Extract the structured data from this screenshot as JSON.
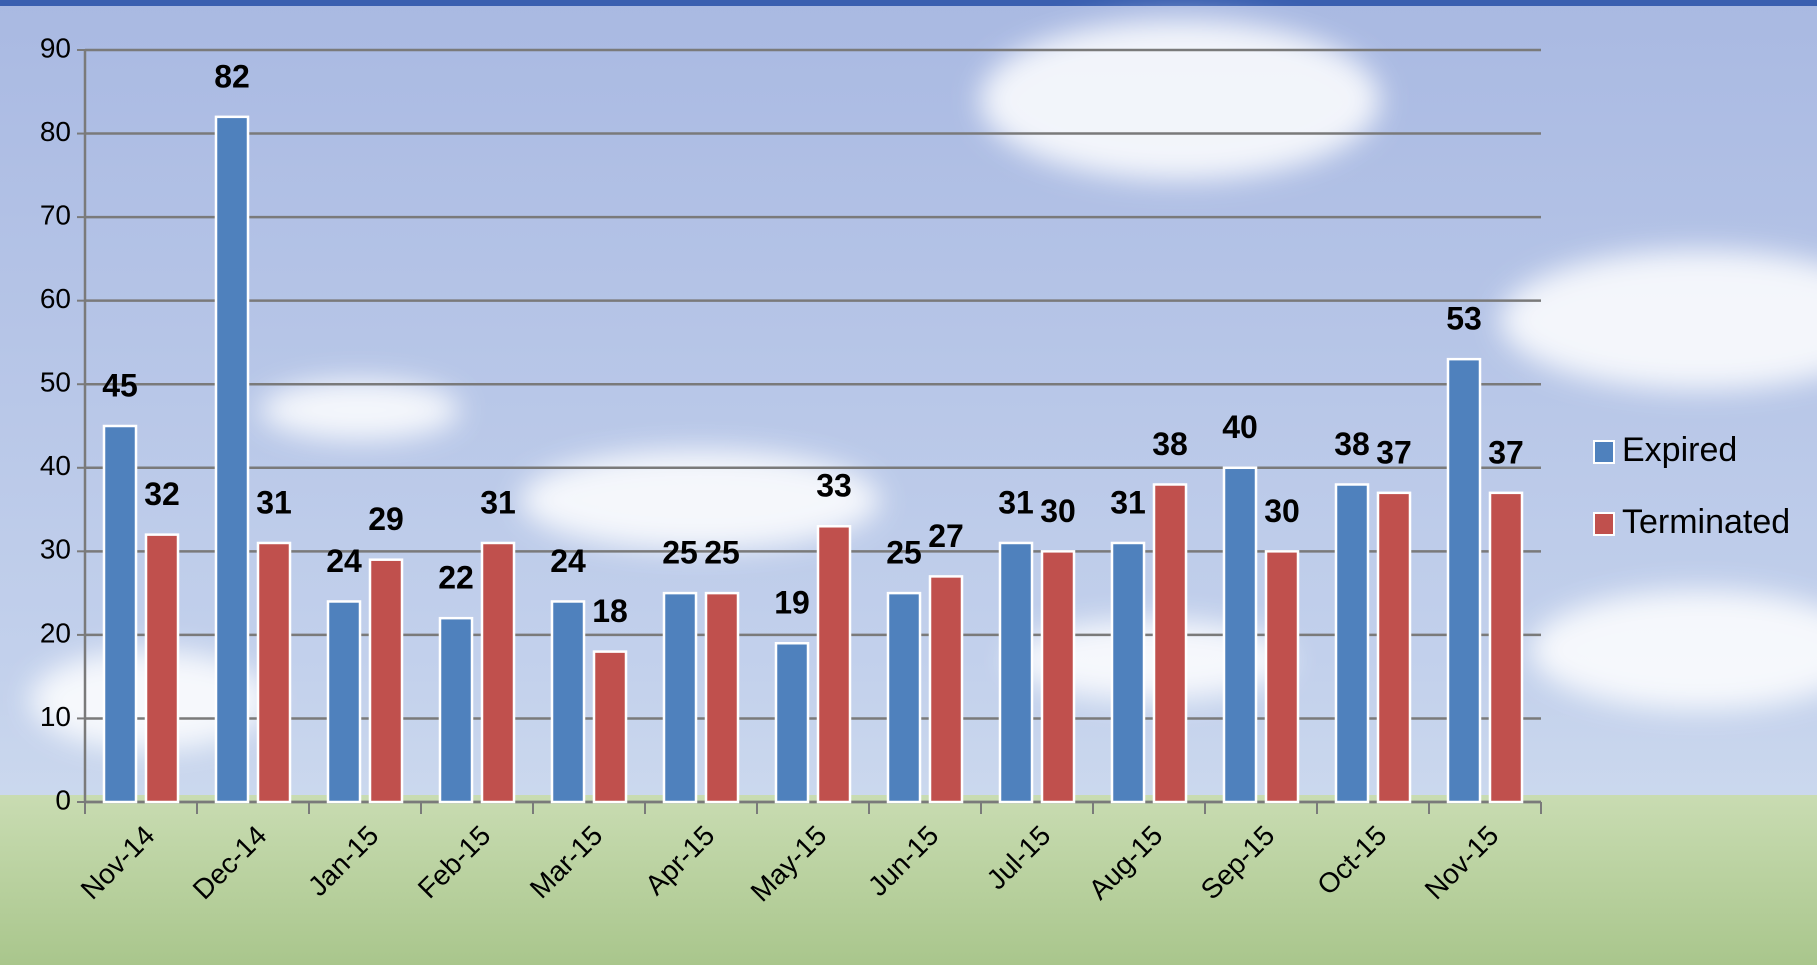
{
  "chart_data": {
    "type": "bar",
    "categories": [
      "Nov-14",
      "Dec-14",
      "Jan-15",
      "Feb-15",
      "Mar-15",
      "Apr-15",
      "May-15",
      "Jun-15",
      "Jul-15",
      "Aug-15",
      "Sep-15",
      "Oct-15",
      "Nov-15"
    ],
    "series": [
      {
        "name": "Expired",
        "color": "#4f81bd",
        "values": [
          45,
          82,
          24,
          22,
          24,
          25,
          19,
          25,
          31,
          31,
          40,
          38,
          53
        ]
      },
      {
        "name": "Terminated",
        "color": "#c0504d",
        "values": [
          32,
          31,
          29,
          31,
          18,
          25,
          33,
          27,
          30,
          38,
          30,
          37,
          37
        ]
      }
    ],
    "ylim": [
      0,
      90
    ],
    "yticks": [
      0,
      10,
      20,
      30,
      40,
      50,
      60,
      70,
      80,
      90
    ],
    "grid": true,
    "legend": "right"
  }
}
